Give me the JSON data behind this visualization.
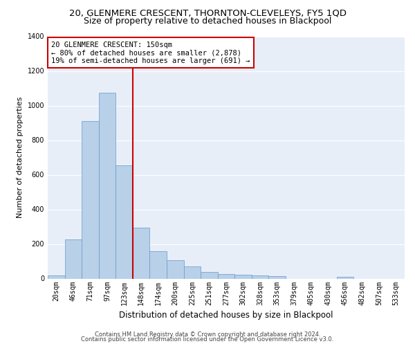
{
  "title": "20, GLENMERE CRESCENT, THORNTON-CLEVELEYS, FY5 1QD",
  "subtitle": "Size of property relative to detached houses in Blackpool",
  "xlabel": "Distribution of detached houses by size in Blackpool",
  "ylabel": "Number of detached properties",
  "categories": [
    "20sqm",
    "46sqm",
    "71sqm",
    "97sqm",
    "123sqm",
    "148sqm",
    "174sqm",
    "200sqm",
    "225sqm",
    "251sqm",
    "277sqm",
    "302sqm",
    "328sqm",
    "353sqm",
    "379sqm",
    "405sqm",
    "430sqm",
    "456sqm",
    "482sqm",
    "507sqm",
    "533sqm"
  ],
  "values": [
    18,
    225,
    910,
    1075,
    655,
    295,
    158,
    107,
    72,
    38,
    27,
    22,
    18,
    15,
    0,
    0,
    0,
    12,
    0,
    0,
    0
  ],
  "bar_color": "#b8d0e8",
  "bar_edge_color": "#6699cc",
  "vline_color": "#cc0000",
  "annotation_text": "20 GLENMERE CRESCENT: 150sqm\n← 80% of detached houses are smaller (2,878)\n19% of semi-detached houses are larger (691) →",
  "annotation_box_facecolor": "#ffffff",
  "annotation_box_edgecolor": "#cc0000",
  "ylim": [
    0,
    1400
  ],
  "yticks": [
    0,
    200,
    400,
    600,
    800,
    1000,
    1200,
    1400
  ],
  "bg_color": "#e8eef8",
  "grid_color": "#ffffff",
  "footer1": "Contains HM Land Registry data © Crown copyright and database right 2024.",
  "footer2": "Contains public sector information licensed under the Open Government Licence v3.0.",
  "title_fontsize": 9.5,
  "subtitle_fontsize": 9,
  "ylabel_fontsize": 8,
  "xlabel_fontsize": 8.5,
  "tick_fontsize": 7,
  "footer_fontsize": 6,
  "annotation_fontsize": 7.5
}
